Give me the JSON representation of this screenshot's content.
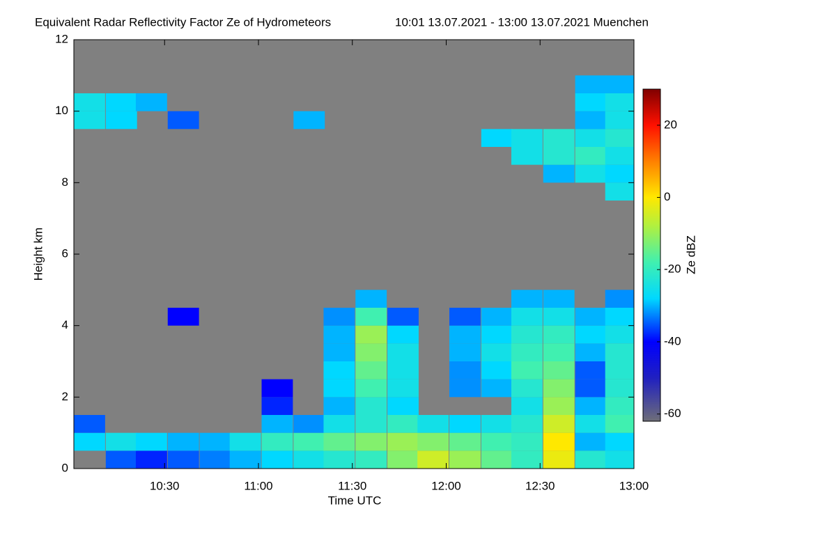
{
  "chart_data": {
    "type": "heatmap",
    "title": "Equivalent Radar Reflectivity Factor Ze of Hydrometeors",
    "subtitle": "10:01 13.07.2021 - 13:00 13.07.2021 Muenchen",
    "x_label": "Time UTC",
    "y_label": "Height km",
    "colorbar_label": "Ze dBZ",
    "background_color": "#808080",
    "xlim": [
      10.0167,
      13.0
    ],
    "xticks": [
      {
        "value": 10.5,
        "label": "10:30"
      },
      {
        "value": 11.0,
        "label": "11:00"
      },
      {
        "value": 11.5,
        "label": "11:30"
      },
      {
        "value": 12.0,
        "label": "12:00"
      },
      {
        "value": 12.5,
        "label": "12:30"
      },
      {
        "value": 13.0,
        "label": "13:00"
      }
    ],
    "ylim": [
      0,
      12
    ],
    "yticks": [
      0,
      2,
      4,
      6,
      8,
      10,
      12
    ],
    "zlim": [
      -62,
      30
    ],
    "zticks": [
      -60,
      -40,
      -20,
      0,
      20
    ],
    "colormap": [
      {
        "value": -62,
        "color": "#6e6e78"
      },
      {
        "value": -50,
        "color": "#2020c0"
      },
      {
        "value": -40,
        "color": "#0000ff"
      },
      {
        "value": -28,
        "color": "#00d8ff"
      },
      {
        "value": -18,
        "color": "#40f0b0"
      },
      {
        "value": -8,
        "color": "#b0f040"
      },
      {
        "value": 0,
        "color": "#ffe800"
      },
      {
        "value": 10,
        "color": "#ff8000"
      },
      {
        "value": 20,
        "color": "#ff1000"
      },
      {
        "value": 30,
        "color": "#800000"
      }
    ],
    "x": [
      10.1,
      10.27,
      10.43,
      10.6,
      10.77,
      10.93,
      11.1,
      11.27,
      11.43,
      11.6,
      11.77,
      11.93,
      12.1,
      12.27,
      12.43,
      12.6,
      12.77,
      12.93
    ],
    "y": [
      0.25,
      0.75,
      1.25,
      1.75,
      2.25,
      2.75,
      3.25,
      3.75,
      4.25,
      4.75,
      5.25,
      5.75,
      6.25,
      6.75,
      7.25,
      7.75,
      8.25,
      8.75,
      9.25,
      9.75,
      10.25,
      10.75,
      11.25,
      11.75
    ],
    "z": [
      [
        null,
        -35,
        -38,
        -35,
        -33,
        -30,
        -28,
        -25,
        -22,
        -20,
        -12,
        -5,
        -10,
        -15,
        -20,
        -2,
        -22,
        -25
      ],
      [
        -28,
        -25,
        -28,
        -30,
        -30,
        -25,
        -20,
        -18,
        -15,
        -12,
        -10,
        -12,
        -15,
        -18,
        -20,
        0,
        -30,
        -28
      ],
      [
        -35,
        null,
        null,
        null,
        null,
        null,
        -30,
        -32,
        -25,
        -22,
        -20,
        -25,
        -28,
        -25,
        -22,
        -5,
        -25,
        -18
      ],
      [
        null,
        null,
        null,
        null,
        null,
        null,
        -38,
        null,
        -30,
        -22,
        -28,
        null,
        null,
        null,
        -25,
        -10,
        -30,
        -20
      ],
      [
        null,
        null,
        null,
        null,
        null,
        null,
        -40,
        null,
        -28,
        -18,
        -25,
        null,
        -32,
        -30,
        -22,
        -12,
        -35,
        -22
      ],
      [
        null,
        null,
        null,
        null,
        null,
        null,
        null,
        null,
        -28,
        -15,
        -25,
        null,
        -32,
        -28,
        -18,
        -15,
        -35,
        -22
      ],
      [
        null,
        null,
        null,
        null,
        null,
        null,
        null,
        null,
        -30,
        -12,
        -25,
        null,
        -30,
        -25,
        -20,
        -18,
        -30,
        -22
      ],
      [
        null,
        null,
        null,
        null,
        null,
        null,
        null,
        null,
        -30,
        -10,
        -28,
        null,
        -30,
        -28,
        -22,
        -20,
        -28,
        -25
      ],
      [
        null,
        null,
        null,
        -40,
        null,
        null,
        null,
        null,
        -32,
        -18,
        -35,
        null,
        -35,
        -30,
        -25,
        -25,
        -30,
        -28
      ],
      [
        null,
        null,
        null,
        null,
        null,
        null,
        null,
        null,
        null,
        -30,
        null,
        null,
        null,
        null,
        -30,
        -30,
        null,
        -32
      ],
      [
        null,
        null,
        null,
        null,
        null,
        null,
        null,
        null,
        null,
        null,
        null,
        null,
        null,
        null,
        null,
        null,
        null,
        null
      ],
      [
        null,
        null,
        null,
        null,
        null,
        null,
        null,
        null,
        null,
        null,
        null,
        null,
        null,
        null,
        null,
        null,
        null,
        null
      ],
      [
        null,
        null,
        null,
        null,
        null,
        null,
        null,
        null,
        null,
        null,
        null,
        null,
        null,
        null,
        null,
        null,
        null,
        null
      ],
      [
        null,
        null,
        null,
        null,
        null,
        null,
        null,
        null,
        null,
        null,
        null,
        null,
        null,
        null,
        null,
        null,
        null,
        null
      ],
      [
        null,
        null,
        null,
        null,
        null,
        null,
        null,
        null,
        null,
        null,
        null,
        null,
        null,
        null,
        null,
        null,
        null,
        null
      ],
      [
        null,
        null,
        null,
        null,
        null,
        null,
        null,
        null,
        null,
        null,
        null,
        null,
        null,
        null,
        null,
        null,
        null,
        -25
      ],
      [
        null,
        null,
        null,
        null,
        null,
        null,
        null,
        null,
        null,
        null,
        null,
        null,
        null,
        null,
        null,
        -30,
        -25,
        -28
      ],
      [
        null,
        null,
        null,
        null,
        null,
        null,
        null,
        null,
        null,
        null,
        null,
        null,
        null,
        null,
        -25,
        -22,
        -20,
        -25
      ],
      [
        null,
        null,
        null,
        null,
        null,
        null,
        null,
        null,
        null,
        null,
        null,
        null,
        null,
        -28,
        -25,
        -22,
        -25,
        -22
      ],
      [
        -25,
        -28,
        null,
        -35,
        null,
        null,
        null,
        -30,
        null,
        null,
        null,
        null,
        null,
        null,
        null,
        null,
        -30,
        -25
      ],
      [
        -25,
        -28,
        -30,
        null,
        null,
        null,
        null,
        null,
        null,
        null,
        null,
        null,
        null,
        null,
        null,
        null,
        -28,
        -25
      ],
      [
        null,
        null,
        null,
        null,
        null,
        null,
        null,
        null,
        null,
        null,
        null,
        null,
        null,
        null,
        null,
        null,
        -30,
        -30
      ],
      [
        null,
        null,
        null,
        null,
        null,
        null,
        null,
        null,
        null,
        null,
        null,
        null,
        null,
        null,
        null,
        null,
        null,
        null
      ],
      [
        null,
        null,
        null,
        null,
        null,
        null,
        null,
        null,
        null,
        null,
        null,
        null,
        null,
        null,
        null,
        null,
        null,
        null
      ]
    ]
  }
}
